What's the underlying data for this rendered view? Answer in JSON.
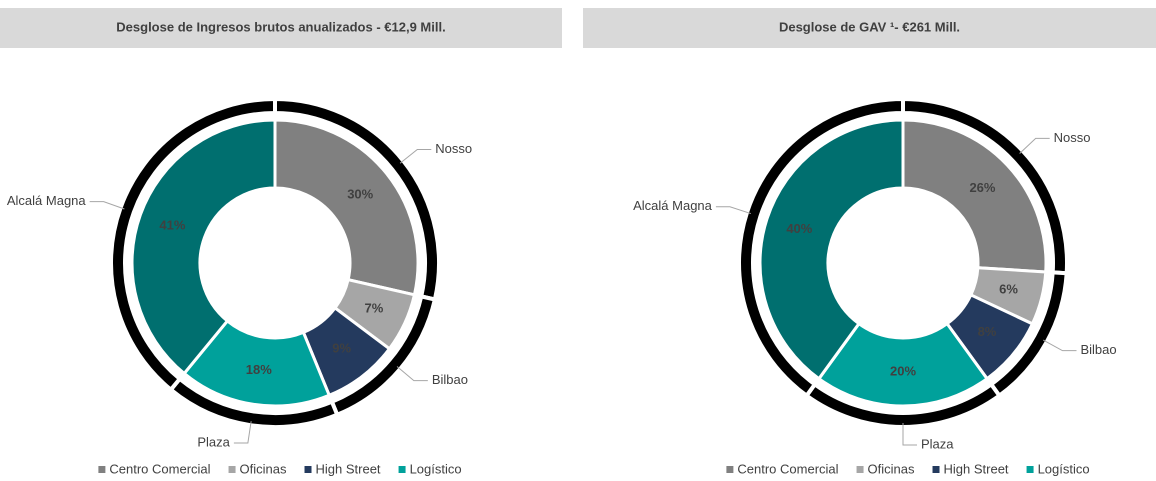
{
  "chart_data": [
    {
      "type": "donut",
      "title": "Desglose de Ingresos brutos anualizados - €12,9 Mill.",
      "values": [
        30,
        7,
        9,
        18,
        41
      ],
      "value_labels": [
        "30%",
        "7%",
        "9%",
        "18%",
        "41%"
      ],
      "colors": [
        "#808080",
        "#a6a6a6",
        "#243a5e",
        "#00a19b",
        "#006f6f"
      ],
      "outer": {
        "labels": [
          "Nosso",
          "Bilbao",
          "Plaza",
          "Alcalá Magna"
        ],
        "values": [
          30,
          16,
          18,
          41
        ],
        "color": "#000000"
      },
      "legend": [
        {
          "name": "Centro Comercial",
          "color": "#808080"
        },
        {
          "name": "Oficinas",
          "color": "#a6a6a6"
        },
        {
          "name": "High Street",
          "color": "#243a5e"
        },
        {
          "name": "Logístico",
          "color": "#00a19b"
        }
      ]
    },
    {
      "type": "donut",
      "title": "Desglose de GAV ¹- €261 Mill.",
      "values": [
        26,
        6,
        8,
        20,
        40
      ],
      "value_labels": [
        "26%",
        "6%",
        "8%",
        "20%",
        "40%"
      ],
      "colors": [
        "#808080",
        "#a6a6a6",
        "#243a5e",
        "#00a19b",
        "#006f6f"
      ],
      "outer": {
        "labels": [
          "Nosso",
          "Bilbao",
          "Plaza",
          "Alcalá Magna"
        ],
        "values": [
          26,
          14,
          20,
          40
        ],
        "color": "#000000"
      },
      "legend": [
        {
          "name": "Centro Comercial",
          "color": "#808080"
        },
        {
          "name": "Oficinas",
          "color": "#a6a6a6"
        },
        {
          "name": "High Street",
          "color": "#243a5e"
        },
        {
          "name": "Logístico",
          "color": "#00a19b"
        }
      ]
    }
  ]
}
